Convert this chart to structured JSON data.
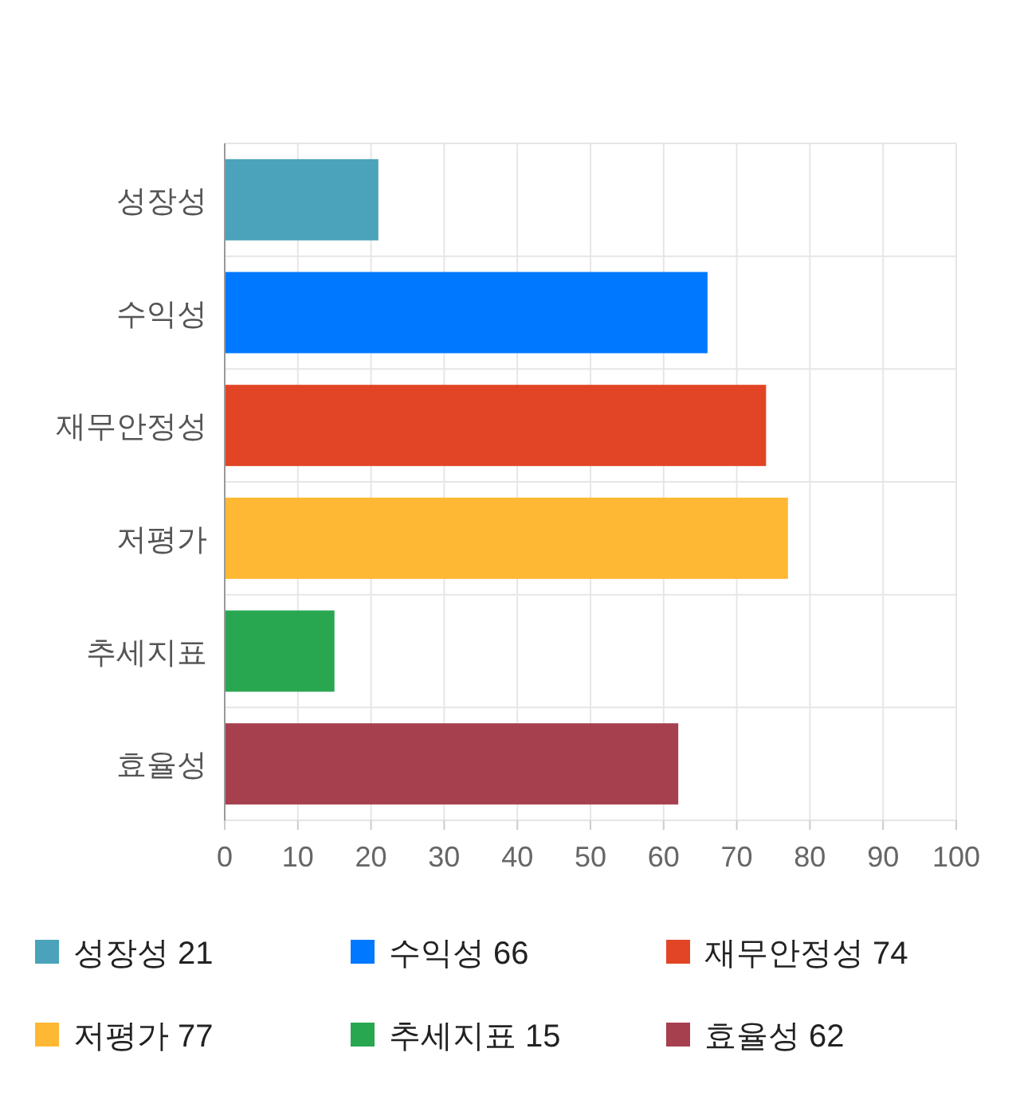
{
  "chart_data": {
    "type": "bar",
    "orientation": "horizontal",
    "categories": [
      "성장성",
      "수익성",
      "재무안정성",
      "저평가",
      "추세지표",
      "효율성"
    ],
    "series": [
      {
        "name": "성장성 21",
        "color": "#4aa3ba",
        "values": [
          21,
          null,
          null,
          null,
          null,
          null
        ]
      },
      {
        "name": "수익성 66",
        "color": "#0078ff",
        "values": [
          null,
          66,
          null,
          null,
          null,
          null
        ]
      },
      {
        "name": "재무안정성 74",
        "color": "#e24525",
        "values": [
          null,
          null,
          74,
          null,
          null,
          null
        ]
      },
      {
        "name": "저평가 77",
        "color": "#ffb833",
        "values": [
          null,
          null,
          null,
          77,
          null,
          null
        ]
      },
      {
        "name": "추세지표 15",
        "color": "#28a650",
        "values": [
          null,
          null,
          null,
          null,
          15,
          null
        ]
      },
      {
        "name": "효율성 62",
        "color": "#a6404f",
        "values": [
          null,
          null,
          null,
          null,
          null,
          62
        ]
      }
    ],
    "xlim": [
      0,
      100
    ],
    "xticks": [
      0,
      10,
      20,
      30,
      40,
      50,
      60,
      70,
      80,
      90,
      100
    ],
    "grid": true,
    "legend": "bottom"
  }
}
